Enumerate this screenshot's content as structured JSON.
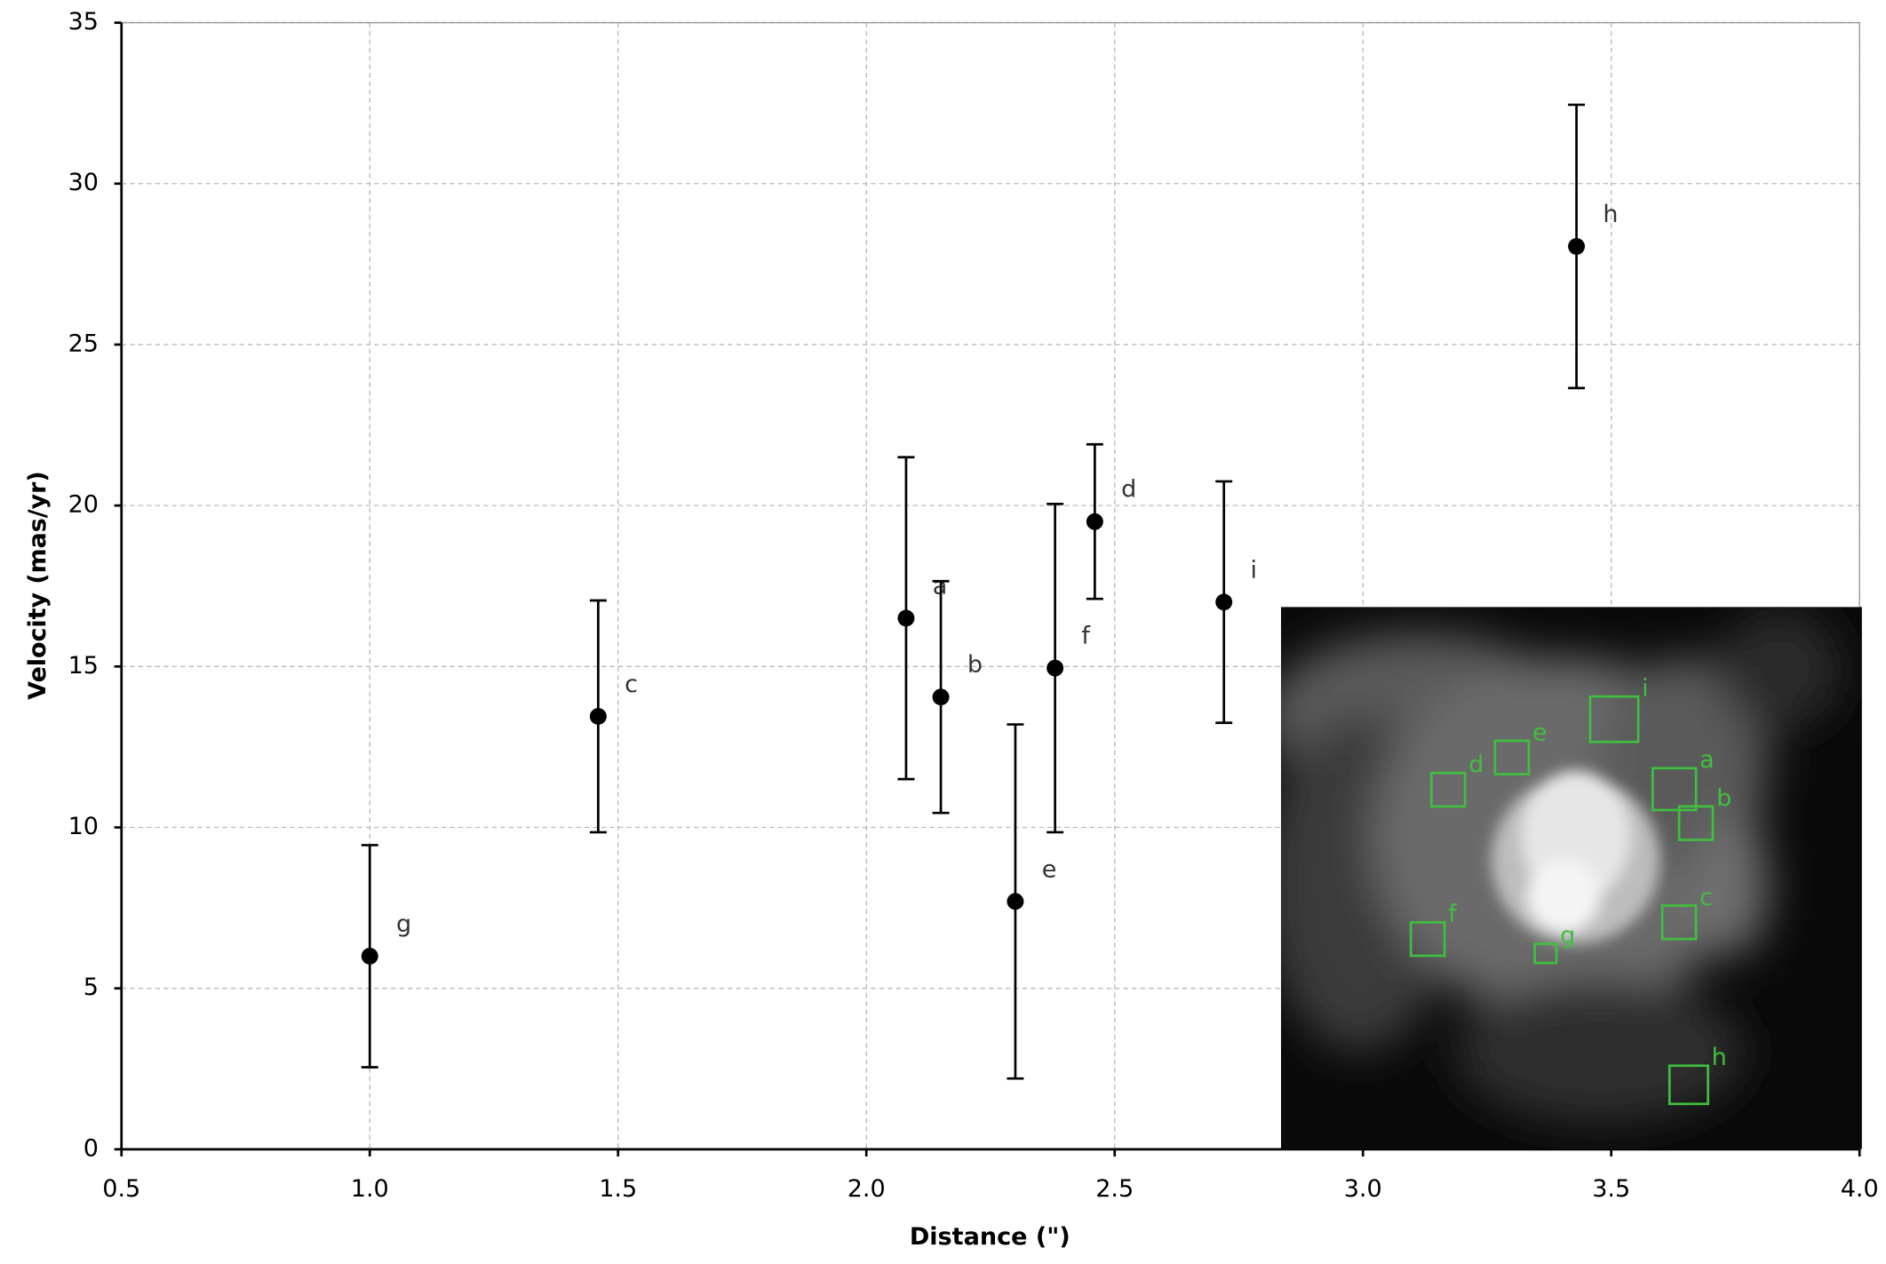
{
  "chart_data": {
    "type": "errorbar",
    "xlabel": "Distance (\")",
    "ylabel": "Velocity (mas/yr)",
    "xlim": [
      0.5,
      4.0
    ],
    "ylim": [
      0,
      35
    ],
    "xticks": [
      0.5,
      {
        "value": 1,
        "label": "1.0"
      },
      1.5,
      {
        "value": 2,
        "label": "2.0"
      },
      2.5,
      {
        "value": 3,
        "label": "3.0"
      },
      3.5,
      {
        "value": 4,
        "label": "4.0"
      }
    ],
    "yticks": [
      0,
      5,
      10,
      15,
      20,
      25,
      30,
      35
    ],
    "grid": true,
    "series": [
      {
        "color": "#000000",
        "labels": [
          "g",
          "c",
          "a",
          "b",
          "e",
          "f",
          "d",
          "i",
          "h"
        ],
        "x": [
          1.0,
          1.46,
          2.08,
          2.15,
          2.3,
          2.38,
          2.46,
          2.72,
          3.43
        ],
        "values": [
          6.0,
          13.45,
          16.5,
          14.05,
          7.7,
          14.95,
          19.5,
          17.0,
          28.05
        ],
        "errors": [
          3.45,
          3.6,
          5.0,
          3.6,
          5.5,
          5.1,
          2.4,
          3.75,
          4.4
        ]
      }
    ],
    "inset": {
      "labels": [
        "i",
        "a",
        "b",
        "e",
        "d",
        "c",
        "f",
        "g",
        "h"
      ],
      "color": "#3fbf3f"
    }
  }
}
